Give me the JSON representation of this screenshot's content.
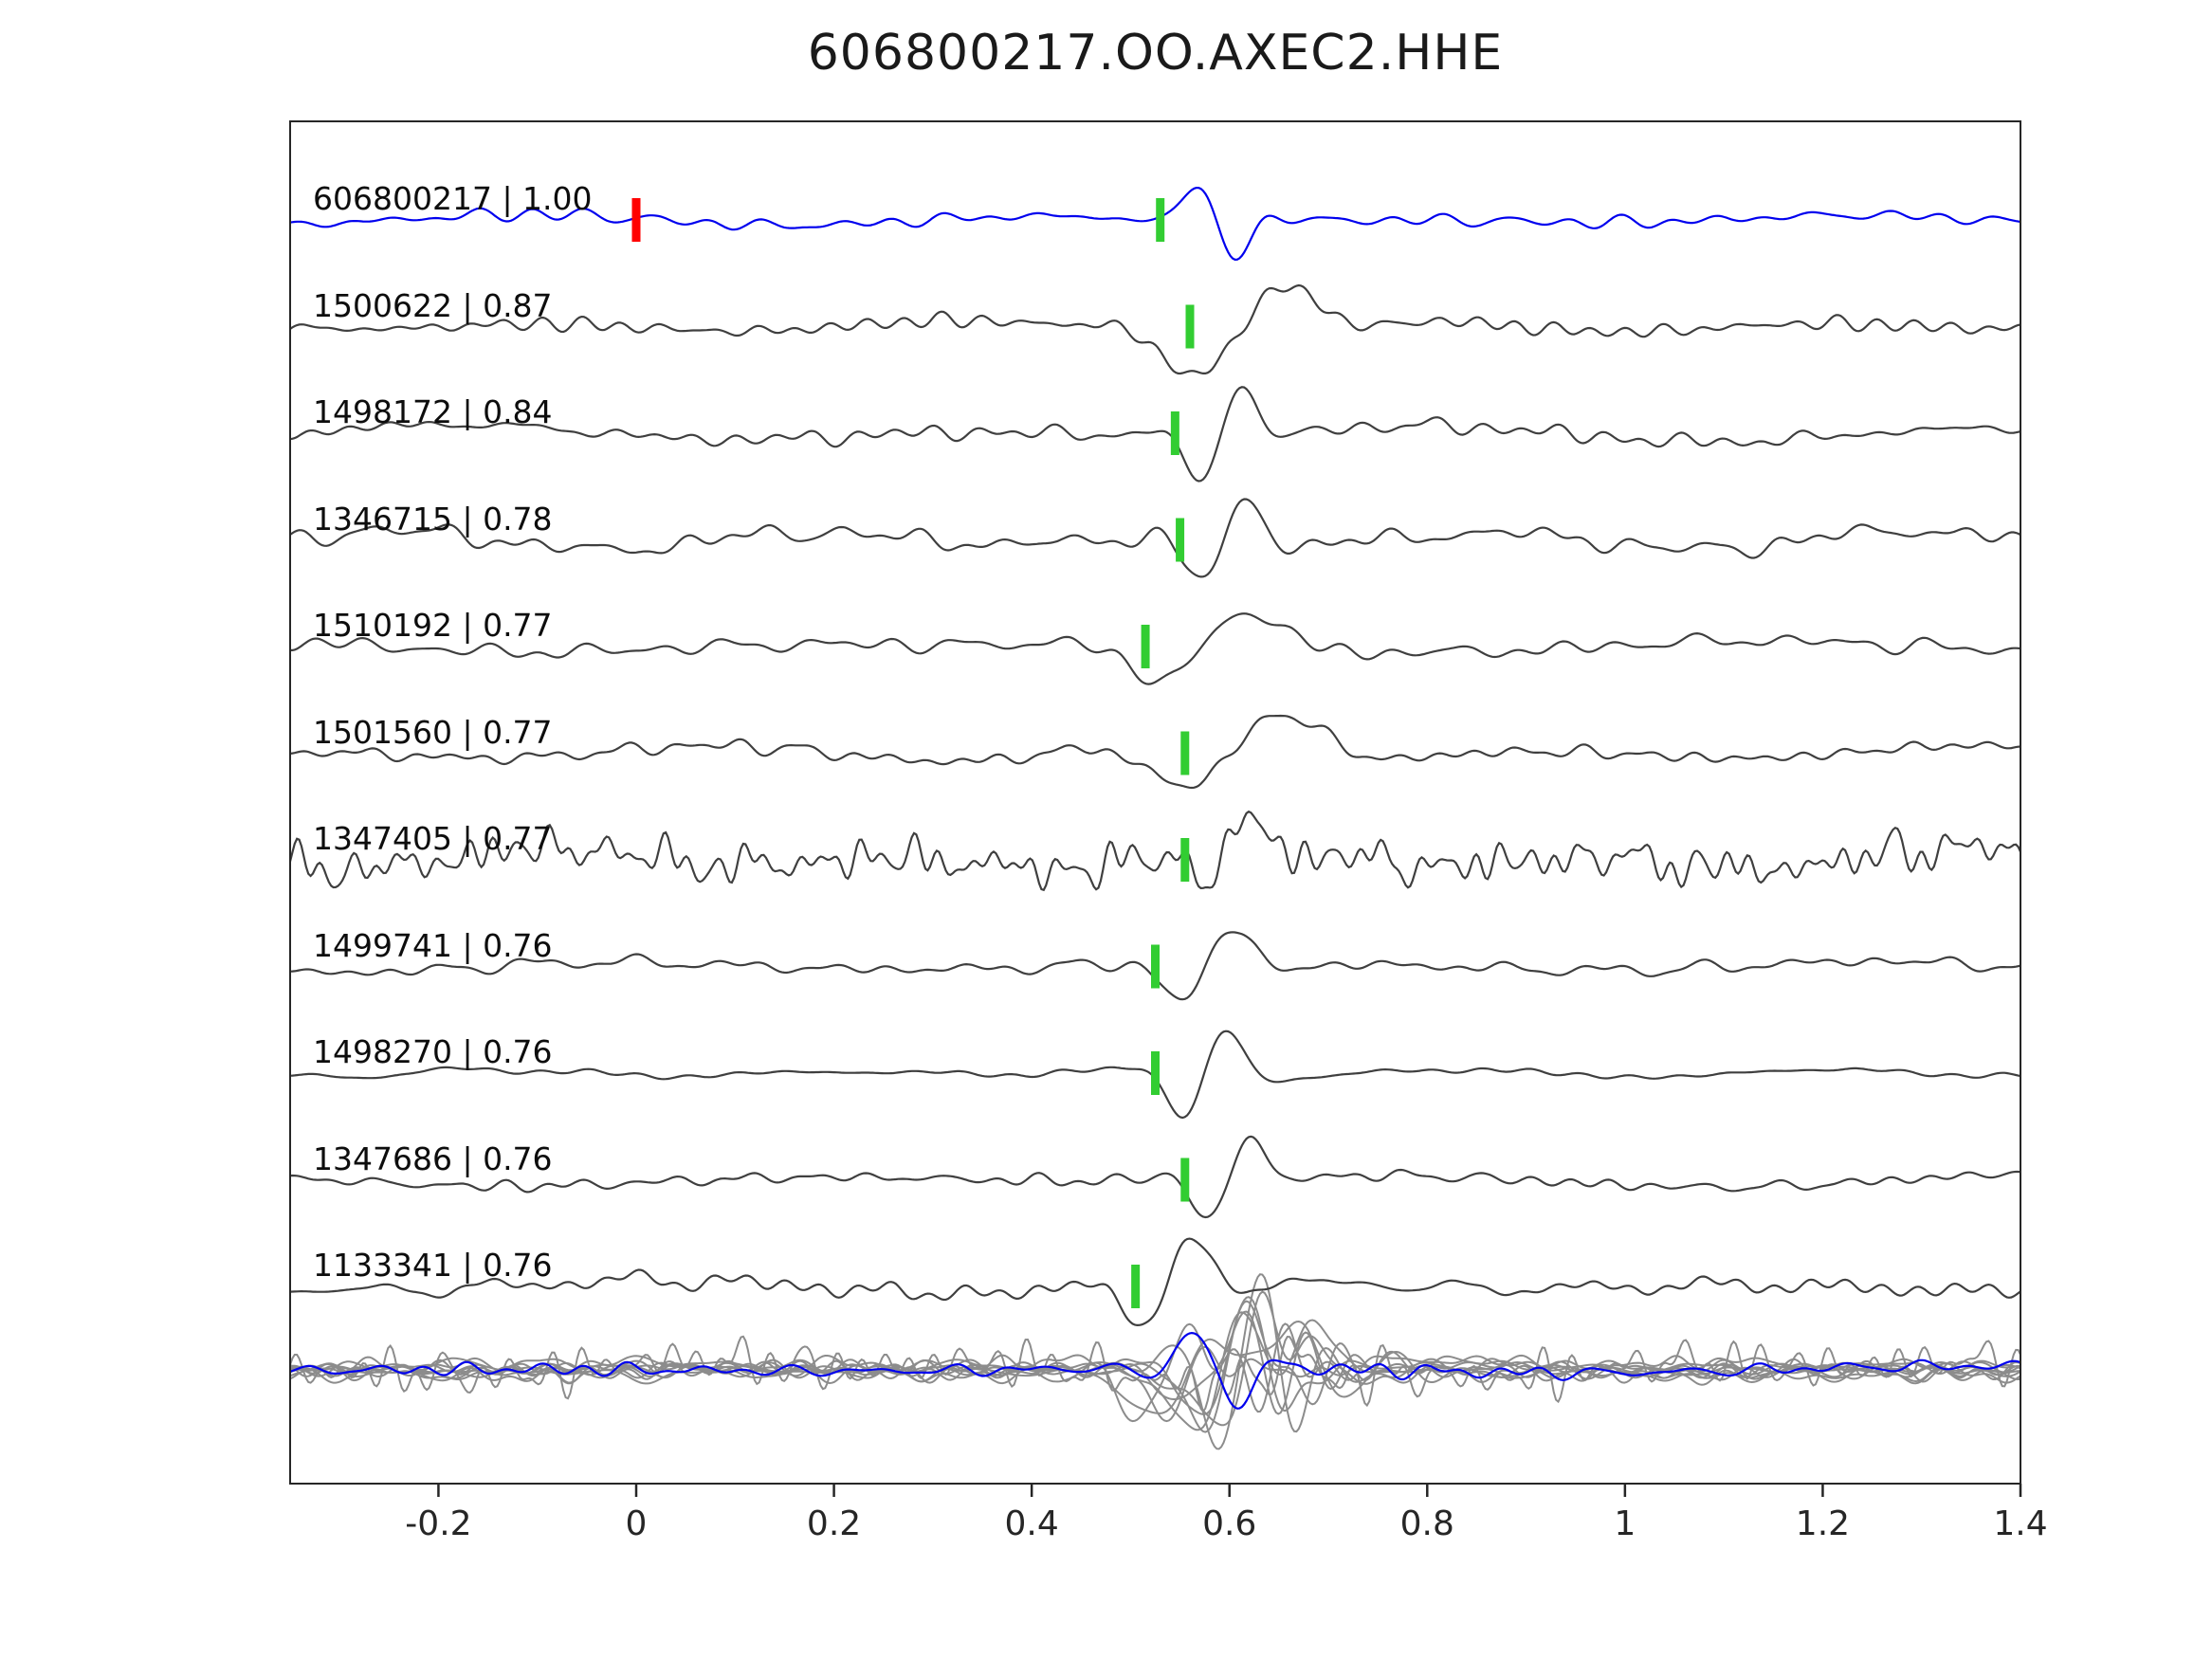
{
  "chart_data": {
    "type": "line",
    "title": "606800217.OO.AXEC2.HHE",
    "xlabel": "",
    "ylabel": "",
    "xlim": [
      -0.35,
      1.4
    ],
    "x_ticks": [
      -0.2,
      0,
      0.2,
      0.4,
      0.6,
      0.8,
      1.0,
      1.2,
      1.4
    ],
    "x_tick_labels": [
      "-0.2",
      "0",
      "0.2",
      "0.4",
      "0.6",
      "0.8",
      "1",
      "1.2",
      "1.4"
    ],
    "grid": false,
    "legend": false,
    "reference_marker_time": 0.0,
    "overlay_row": true,
    "colors": {
      "reference_trace": "#0000ee",
      "match_trace": "#3f3f3f",
      "overlay_trace": "#8c8c8c",
      "pick_marker": "#32cd32",
      "reference_marker": "#ff0000",
      "axis": "#262626",
      "text": "#0d0d0d"
    },
    "series": [
      {
        "id": "606800217",
        "label": "606800217 | 1.00",
        "correlation": 1.0,
        "pick_time": 0.53,
        "is_reference": true
      },
      {
        "id": "1500622",
        "label": "1500622 | 0.87",
        "correlation": 0.87,
        "pick_time": 0.56,
        "is_reference": false
      },
      {
        "id": "1498172",
        "label": "1498172 | 0.84",
        "correlation": 0.84,
        "pick_time": 0.545,
        "is_reference": false
      },
      {
        "id": "1346715",
        "label": "1346715 | 0.78",
        "correlation": 0.78,
        "pick_time": 0.55,
        "is_reference": false
      },
      {
        "id": "1510192",
        "label": "1510192 | 0.77",
        "correlation": 0.77,
        "pick_time": 0.515,
        "is_reference": false
      },
      {
        "id": "1501560",
        "label": "1501560 | 0.77",
        "correlation": 0.77,
        "pick_time": 0.555,
        "is_reference": false
      },
      {
        "id": "1347405",
        "label": "1347405 | 0.77",
        "correlation": 0.77,
        "pick_time": 0.555,
        "is_reference": false
      },
      {
        "id": "1499741",
        "label": "1499741 | 0.76",
        "correlation": 0.76,
        "pick_time": 0.525,
        "is_reference": false
      },
      {
        "id": "1498270",
        "label": "1498270 | 0.76",
        "correlation": 0.76,
        "pick_time": 0.525,
        "is_reference": false
      },
      {
        "id": "1347686",
        "label": "1347686 | 0.76",
        "correlation": 0.76,
        "pick_time": 0.555,
        "is_reference": false
      },
      {
        "id": "1133341",
        "label": "1133341 | 0.76",
        "correlation": 0.76,
        "pick_time": 0.505,
        "is_reference": false
      }
    ]
  }
}
